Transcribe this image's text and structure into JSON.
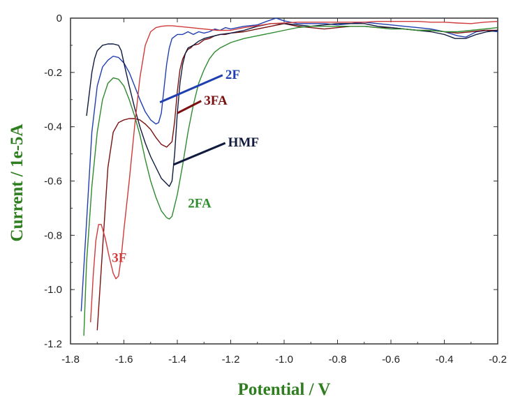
{
  "chart_data": {
    "type": "line",
    "title": "",
    "xlabel": "Potential / V",
    "ylabel": "Current / 1e-5A",
    "xlim": [
      -1.8,
      -0.2
    ],
    "ylim": [
      -1.2,
      0
    ],
    "x_ticks": [
      "-1.8",
      "-1.6",
      "-1.4",
      "-1.2",
      "-1.0",
      "-0.8",
      "-0.6",
      "-0.4",
      "-0.2"
    ],
    "y_ticks": [
      "0",
      "-0.2",
      "-0.4",
      "-0.6",
      "-0.8",
      "-1.0",
      "-1.2"
    ],
    "grid": false,
    "legend": "inline-labels",
    "series": [
      {
        "name": "2F",
        "color": "#1f3fb0",
        "label_anchor": [
          -1.465,
          -0.31
        ],
        "label_text_at": [
          -1.22,
          -0.205
        ],
        "points": [
          [
            -1.76,
            -1.08
          ],
          [
            -1.74,
            -0.75
          ],
          [
            -1.72,
            -0.42
          ],
          [
            -1.7,
            -0.25
          ],
          [
            -1.68,
            -0.18
          ],
          [
            -1.66,
            -0.155
          ],
          [
            -1.64,
            -0.14
          ],
          [
            -1.62,
            -0.145
          ],
          [
            -1.6,
            -0.165
          ],
          [
            -1.58,
            -0.2
          ],
          [
            -1.56,
            -0.25
          ],
          [
            -1.54,
            -0.3
          ],
          [
            -1.52,
            -0.345
          ],
          [
            -1.5,
            -0.375
          ],
          [
            -1.48,
            -0.39
          ],
          [
            -1.47,
            -0.385
          ],
          [
            -1.46,
            -0.35
          ],
          [
            -1.45,
            -0.26
          ],
          [
            -1.44,
            -0.17
          ],
          [
            -1.43,
            -0.11
          ],
          [
            -1.42,
            -0.075
          ],
          [
            -1.4,
            -0.06
          ],
          [
            -1.38,
            -0.06
          ],
          [
            -1.36,
            -0.05
          ],
          [
            -1.34,
            -0.06
          ],
          [
            -1.32,
            -0.05
          ],
          [
            -1.3,
            -0.055
          ],
          [
            -1.28,
            -0.05
          ],
          [
            -1.26,
            -0.04
          ],
          [
            -1.24,
            -0.045
          ],
          [
            -1.22,
            -0.035
          ],
          [
            -1.2,
            -0.04
          ],
          [
            -1.15,
            -0.03
          ],
          [
            -1.1,
            -0.025
          ],
          [
            -1.06,
            -0.01
          ],
          [
            -1.03,
            0.0
          ],
          [
            -1.0,
            -0.01
          ],
          [
            -0.95,
            -0.02
          ],
          [
            -0.9,
            -0.02
          ],
          [
            -0.85,
            -0.02
          ],
          [
            -0.8,
            -0.025
          ],
          [
            -0.75,
            -0.02
          ],
          [
            -0.7,
            -0.015
          ],
          [
            -0.65,
            -0.02
          ],
          [
            -0.6,
            -0.025
          ],
          [
            -0.55,
            -0.03
          ],
          [
            -0.5,
            -0.035
          ],
          [
            -0.45,
            -0.04
          ],
          [
            -0.4,
            -0.05
          ],
          [
            -0.35,
            -0.065
          ],
          [
            -0.32,
            -0.07
          ],
          [
            -0.28,
            -0.05
          ],
          [
            -0.24,
            -0.045
          ],
          [
            -0.2,
            -0.05
          ]
        ]
      },
      {
        "name": "3FA",
        "color": "#7a1010",
        "label_anchor": [
          -1.4,
          -0.35
        ],
        "label_text_at": [
          -1.3,
          -0.3
        ],
        "points": [
          [
            -1.7,
            -1.15
          ],
          [
            -1.68,
            -0.85
          ],
          [
            -1.66,
            -0.55
          ],
          [
            -1.64,
            -0.42
          ],
          [
            -1.62,
            -0.385
          ],
          [
            -1.6,
            -0.375
          ],
          [
            -1.58,
            -0.37
          ],
          [
            -1.56,
            -0.37
          ],
          [
            -1.54,
            -0.375
          ],
          [
            -1.52,
            -0.39
          ],
          [
            -1.5,
            -0.41
          ],
          [
            -1.48,
            -0.44
          ],
          [
            -1.46,
            -0.465
          ],
          [
            -1.44,
            -0.475
          ],
          [
            -1.42,
            -0.455
          ],
          [
            -1.41,
            -0.38
          ],
          [
            -1.4,
            -0.27
          ],
          [
            -1.39,
            -0.19
          ],
          [
            -1.38,
            -0.15
          ],
          [
            -1.37,
            -0.13
          ],
          [
            -1.36,
            -0.115
          ],
          [
            -1.35,
            -0.11
          ],
          [
            -1.34,
            -0.1
          ],
          [
            -1.32,
            -0.095
          ],
          [
            -1.3,
            -0.08
          ],
          [
            -1.28,
            -0.075
          ],
          [
            -1.26,
            -0.065
          ],
          [
            -1.24,
            -0.06
          ],
          [
            -1.22,
            -0.06
          ],
          [
            -1.2,
            -0.055
          ],
          [
            -1.15,
            -0.05
          ],
          [
            -1.1,
            -0.04
          ],
          [
            -1.05,
            -0.03
          ],
          [
            -1.0,
            -0.02
          ],
          [
            -0.95,
            -0.03
          ],
          [
            -0.9,
            -0.035
          ],
          [
            -0.85,
            -0.04
          ],
          [
            -0.8,
            -0.035
          ],
          [
            -0.75,
            -0.03
          ],
          [
            -0.7,
            -0.03
          ],
          [
            -0.65,
            -0.035
          ],
          [
            -0.6,
            -0.035
          ],
          [
            -0.55,
            -0.04
          ],
          [
            -0.5,
            -0.045
          ],
          [
            -0.45,
            -0.045
          ],
          [
            -0.4,
            -0.05
          ],
          [
            -0.35,
            -0.055
          ],
          [
            -0.3,
            -0.05
          ],
          [
            -0.25,
            -0.045
          ],
          [
            -0.2,
            -0.045
          ]
        ]
      },
      {
        "name": "HMF",
        "color": "#0f1a3d",
        "label_anchor": [
          -1.415,
          -0.54
        ],
        "label_text_at": [
          -1.21,
          -0.455
        ],
        "points": [
          [
            -1.74,
            -0.36
          ],
          [
            -1.73,
            -0.28
          ],
          [
            -1.72,
            -0.2
          ],
          [
            -1.71,
            -0.15
          ],
          [
            -1.7,
            -0.12
          ],
          [
            -1.68,
            -0.1
          ],
          [
            -1.66,
            -0.095
          ],
          [
            -1.64,
            -0.095
          ],
          [
            -1.62,
            -0.1
          ],
          [
            -1.61,
            -0.12
          ],
          [
            -1.6,
            -0.165
          ],
          [
            -1.58,
            -0.25
          ],
          [
            -1.56,
            -0.33
          ],
          [
            -1.54,
            -0.4
          ],
          [
            -1.52,
            -0.46
          ],
          [
            -1.5,
            -0.51
          ],
          [
            -1.48,
            -0.55
          ],
          [
            -1.46,
            -0.59
          ],
          [
            -1.44,
            -0.61
          ],
          [
            -1.43,
            -0.62
          ],
          [
            -1.42,
            -0.6
          ],
          [
            -1.41,
            -0.5
          ],
          [
            -1.4,
            -0.35
          ],
          [
            -1.39,
            -0.24
          ],
          [
            -1.38,
            -0.17
          ],
          [
            -1.37,
            -0.13
          ],
          [
            -1.36,
            -0.11
          ],
          [
            -1.34,
            -0.1
          ],
          [
            -1.32,
            -0.085
          ],
          [
            -1.3,
            -0.075
          ],
          [
            -1.28,
            -0.07
          ],
          [
            -1.26,
            -0.065
          ],
          [
            -1.24,
            -0.06
          ],
          [
            -1.2,
            -0.055
          ],
          [
            -1.15,
            -0.045
          ],
          [
            -1.1,
            -0.03
          ],
          [
            -1.05,
            -0.02
          ],
          [
            -1.0,
            -0.02
          ],
          [
            -0.95,
            -0.025
          ],
          [
            -0.9,
            -0.03
          ],
          [
            -0.85,
            -0.025
          ],
          [
            -0.8,
            -0.02
          ],
          [
            -0.75,
            -0.02
          ],
          [
            -0.7,
            -0.02
          ],
          [
            -0.65,
            -0.03
          ],
          [
            -0.6,
            -0.035
          ],
          [
            -0.55,
            -0.04
          ],
          [
            -0.5,
            -0.045
          ],
          [
            -0.45,
            -0.05
          ],
          [
            -0.4,
            -0.06
          ],
          [
            -0.36,
            -0.075
          ],
          [
            -0.32,
            -0.075
          ],
          [
            -0.28,
            -0.06
          ],
          [
            -0.24,
            -0.05
          ],
          [
            -0.2,
            -0.045
          ]
        ]
      },
      {
        "name": "2FA",
        "color": "#2e8b2e",
        "label_at": [
          -1.36,
          -0.68
        ],
        "points": [
          [
            -1.75,
            -1.17
          ],
          [
            -1.74,
            -0.9
          ],
          [
            -1.72,
            -0.62
          ],
          [
            -1.7,
            -0.42
          ],
          [
            -1.68,
            -0.3
          ],
          [
            -1.66,
            -0.24
          ],
          [
            -1.64,
            -0.22
          ],
          [
            -1.62,
            -0.225
          ],
          [
            -1.6,
            -0.25
          ],
          [
            -1.58,
            -0.3
          ],
          [
            -1.56,
            -0.36
          ],
          [
            -1.54,
            -0.43
          ],
          [
            -1.52,
            -0.52
          ],
          [
            -1.5,
            -0.6
          ],
          [
            -1.48,
            -0.66
          ],
          [
            -1.46,
            -0.71
          ],
          [
            -1.44,
            -0.735
          ],
          [
            -1.43,
            -0.74
          ],
          [
            -1.42,
            -0.73
          ],
          [
            -1.4,
            -0.65
          ],
          [
            -1.38,
            -0.54
          ],
          [
            -1.36,
            -0.42
          ],
          [
            -1.34,
            -0.32
          ],
          [
            -1.32,
            -0.24
          ],
          [
            -1.3,
            -0.19
          ],
          [
            -1.28,
            -0.15
          ],
          [
            -1.26,
            -0.125
          ],
          [
            -1.24,
            -0.11
          ],
          [
            -1.22,
            -0.1
          ],
          [
            -1.2,
            -0.09
          ],
          [
            -1.15,
            -0.075
          ],
          [
            -1.1,
            -0.065
          ],
          [
            -1.05,
            -0.055
          ],
          [
            -1.0,
            -0.045
          ],
          [
            -0.95,
            -0.035
          ],
          [
            -0.9,
            -0.03
          ],
          [
            -0.85,
            -0.03
          ],
          [
            -0.8,
            -0.03
          ],
          [
            -0.75,
            -0.03
          ],
          [
            -0.7,
            -0.03
          ],
          [
            -0.65,
            -0.035
          ],
          [
            -0.6,
            -0.04
          ],
          [
            -0.55,
            -0.04
          ],
          [
            -0.5,
            -0.045
          ],
          [
            -0.45,
            -0.045
          ],
          [
            -0.4,
            -0.05
          ],
          [
            -0.35,
            -0.05
          ],
          [
            -0.3,
            -0.045
          ],
          [
            -0.25,
            -0.04
          ],
          [
            -0.2,
            -0.035
          ]
        ]
      },
      {
        "name": "3F",
        "color": "#d03a3a",
        "label_at": [
          -1.645,
          -0.88
        ],
        "points": [
          [
            -1.725,
            -1.12
          ],
          [
            -1.715,
            -0.95
          ],
          [
            -1.705,
            -0.82
          ],
          [
            -1.695,
            -0.76
          ],
          [
            -1.685,
            -0.76
          ],
          [
            -1.67,
            -0.81
          ],
          [
            -1.655,
            -0.88
          ],
          [
            -1.64,
            -0.94
          ],
          [
            -1.63,
            -0.96
          ],
          [
            -1.62,
            -0.95
          ],
          [
            -1.61,
            -0.88
          ],
          [
            -1.6,
            -0.78
          ],
          [
            -1.58,
            -0.6
          ],
          [
            -1.56,
            -0.4
          ],
          [
            -1.54,
            -0.22
          ],
          [
            -1.52,
            -0.1
          ],
          [
            -1.5,
            -0.05
          ],
          [
            -1.48,
            -0.035
          ],
          [
            -1.46,
            -0.03
          ],
          [
            -1.44,
            -0.028
          ],
          [
            -1.42,
            -0.028
          ],
          [
            -1.4,
            -0.03
          ],
          [
            -1.35,
            -0.035
          ],
          [
            -1.3,
            -0.04
          ],
          [
            -1.25,
            -0.045
          ],
          [
            -1.2,
            -0.045
          ],
          [
            -1.15,
            -0.035
          ],
          [
            -1.1,
            -0.028
          ],
          [
            -1.05,
            -0.02
          ],
          [
            -1.0,
            -0.018
          ],
          [
            -0.95,
            -0.015
          ],
          [
            -0.9,
            -0.015
          ],
          [
            -0.85,
            -0.015
          ],
          [
            -0.8,
            -0.015
          ],
          [
            -0.75,
            -0.015
          ],
          [
            -0.7,
            -0.015
          ],
          [
            -0.65,
            -0.012
          ],
          [
            -0.6,
            -0.012
          ],
          [
            -0.55,
            -0.012
          ],
          [
            -0.5,
            -0.012
          ],
          [
            -0.45,
            -0.015
          ],
          [
            -0.4,
            -0.015
          ],
          [
            -0.35,
            -0.018
          ],
          [
            -0.3,
            -0.02
          ],
          [
            -0.25,
            -0.015
          ],
          [
            -0.2,
            -0.012
          ]
        ]
      }
    ]
  }
}
